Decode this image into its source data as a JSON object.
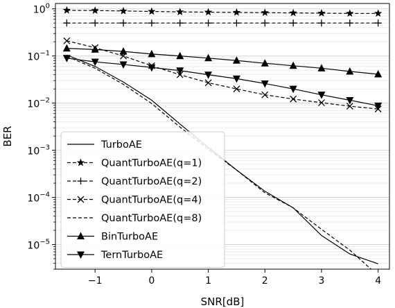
{
  "chart_data": {
    "type": "line",
    "xlabel": "SNR[dB]",
    "ylabel": "BER",
    "xlim": [
      -1.7,
      4.2
    ],
    "ylim": [
      3e-06,
      1.3
    ],
    "yscale": "log",
    "grid": "y-major-and-minor",
    "legend_position": "lower-left",
    "x_ticks": [
      {
        "value": -1,
        "label": "−1"
      },
      {
        "value": 0,
        "label": "0"
      },
      {
        "value": 1,
        "label": "1"
      },
      {
        "value": 2,
        "label": "2"
      },
      {
        "value": 3,
        "label": "3"
      },
      {
        "value": 4,
        "label": "4"
      }
    ],
    "y_ticks": [
      {
        "value": 1,
        "base": "10",
        "exp": "0"
      },
      {
        "value": 0.1,
        "base": "10",
        "exp": "−1"
      },
      {
        "value": 0.01,
        "base": "10",
        "exp": "−2"
      },
      {
        "value": 0.001,
        "base": "10",
        "exp": "−3"
      },
      {
        "value": 0.0001,
        "base": "10",
        "exp": "−4"
      },
      {
        "value": 1e-05,
        "base": "10",
        "exp": "−5"
      }
    ],
    "x": [
      -1.5,
      -1.0,
      -0.5,
      0.0,
      0.5,
      1.0,
      1.5,
      2.0,
      2.5,
      3.0,
      3.5,
      4.0
    ],
    "series": [
      {
        "name": "TurboAE",
        "line": "solid",
        "marker": "none",
        "values": [
          0.105,
          0.06,
          0.028,
          0.0115,
          0.0036,
          0.00115,
          0.00038,
          0.000135,
          6e-05,
          1.55e-05,
          6.3e-06,
          3.9e-06
        ]
      },
      {
        "name": "QuantTurboAE(q=1)",
        "line": "dashed",
        "marker": "star",
        "values": [
          0.93,
          0.92,
          0.9,
          0.88,
          0.86,
          0.85,
          0.84,
          0.83,
          0.82,
          0.81,
          0.8,
          0.8
        ]
      },
      {
        "name": "QuantTurboAE(q=2)",
        "line": "dashed",
        "marker": "plus",
        "values": [
          0.5,
          0.5,
          0.5,
          0.5,
          0.5,
          0.5,
          0.5,
          0.5,
          0.5,
          0.5,
          0.5,
          0.5
        ]
      },
      {
        "name": "QuantTurboAE(q=4)",
        "line": "dashed",
        "marker": "x",
        "values": [
          0.21,
          0.15,
          0.1,
          0.062,
          0.04,
          0.027,
          0.02,
          0.015,
          0.0122,
          0.0102,
          0.0086,
          0.0075
        ]
      },
      {
        "name": "QuantTurboAE(q=8)",
        "line": "dashed",
        "marker": "none",
        "values": [
          0.098,
          0.055,
          0.025,
          0.0098,
          0.0031,
          0.00105,
          0.00038,
          0.000125,
          6e-05,
          2.1e-05,
          7.6e-06,
          2.2e-06
        ]
      },
      {
        "name": "BinTurboAE",
        "line": "solid",
        "marker": "triangle-up",
        "values": [
          0.145,
          0.137,
          0.125,
          0.11,
          0.1,
          0.09,
          0.08,
          0.07,
          0.062,
          0.055,
          0.047,
          0.041
        ]
      },
      {
        "name": "TernTurboAE",
        "line": "solid",
        "marker": "triangle-down",
        "values": [
          0.09,
          0.075,
          0.066,
          0.057,
          0.049,
          0.04,
          0.033,
          0.026,
          0.02,
          0.015,
          0.0115,
          0.0088
        ]
      }
    ]
  }
}
